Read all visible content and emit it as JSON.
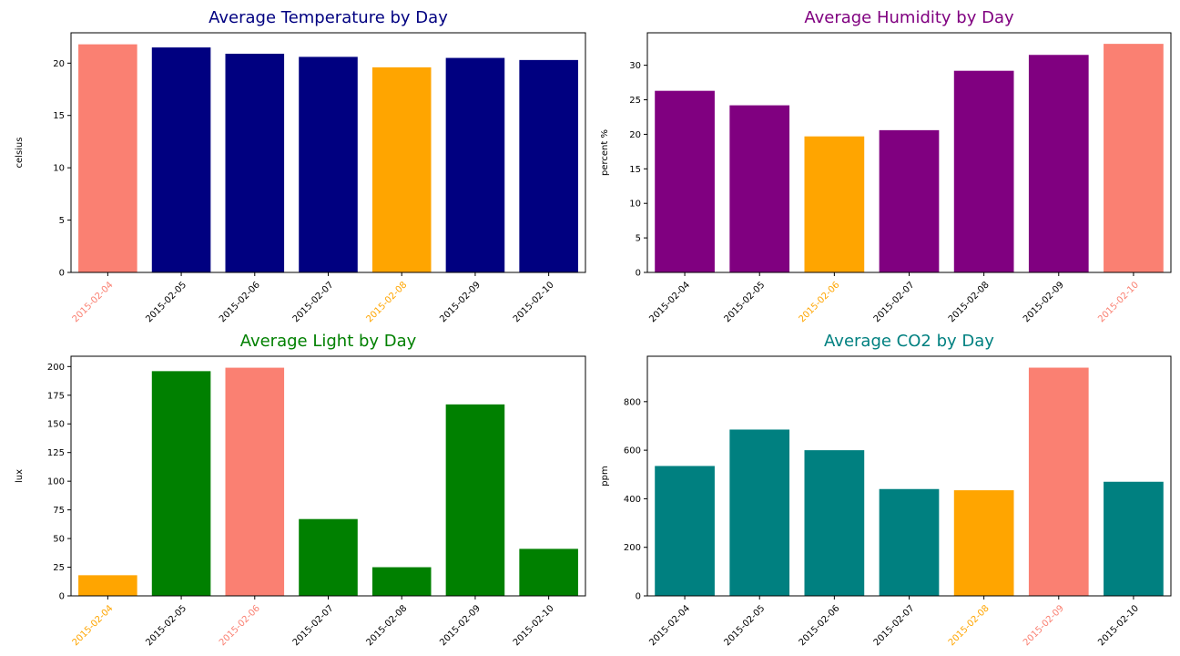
{
  "colors": {
    "highlight_max": "#fa8072",
    "highlight_min": "#ffa500",
    "axis": "#000000",
    "background": "#ffffff"
  },
  "chart_data": [
    {
      "id": "temperature",
      "type": "bar",
      "title": "Average Temperature by Day",
      "title_color": "#000080",
      "bar_color": "#000080",
      "xlabel": "",
      "ylabel": "celsius",
      "categories": [
        "2015-02-04",
        "2015-02-05",
        "2015-02-06",
        "2015-02-07",
        "2015-02-08",
        "2015-02-09",
        "2015-02-10"
      ],
      "values": [
        21.8,
        21.5,
        20.9,
        20.6,
        19.6,
        20.5,
        20.3
      ],
      "ylim": [
        0,
        22.9
      ],
      "yticks": [
        0,
        5,
        10,
        15,
        20
      ],
      "max_index": 0,
      "min_index": 4,
      "grid": false
    },
    {
      "id": "humidity",
      "type": "bar",
      "title": "Average Humidity by Day",
      "title_color": "#800080",
      "bar_color": "#800080",
      "xlabel": "",
      "ylabel": "percent %",
      "categories": [
        "2015-02-04",
        "2015-02-05",
        "2015-02-06",
        "2015-02-07",
        "2015-02-08",
        "2015-02-09",
        "2015-02-10"
      ],
      "values": [
        26.3,
        24.2,
        19.7,
        20.6,
        29.2,
        31.5,
        33.1
      ],
      "ylim": [
        0,
        34.7
      ],
      "yticks": [
        0,
        5,
        10,
        15,
        20,
        25,
        30
      ],
      "max_index": 6,
      "min_index": 2,
      "grid": false
    },
    {
      "id": "light",
      "type": "bar",
      "title": "Average Light by Day",
      "title_color": "#008000",
      "bar_color": "#008000",
      "xlabel": "",
      "ylabel": "lux",
      "categories": [
        "2015-02-04",
        "2015-02-05",
        "2015-02-06",
        "2015-02-07",
        "2015-02-08",
        "2015-02-09",
        "2015-02-10"
      ],
      "values": [
        18,
        196,
        199,
        67,
        25,
        167,
        41
      ],
      "ylim": [
        0,
        209
      ],
      "yticks": [
        0,
        25,
        50,
        75,
        100,
        125,
        150,
        175,
        200
      ],
      "max_index": 2,
      "min_index": 0,
      "grid": false
    },
    {
      "id": "co2",
      "type": "bar",
      "title": "Average CO2 by Day",
      "title_color": "#008080",
      "bar_color": "#008080",
      "xlabel": "",
      "ylabel": "ppm",
      "categories": [
        "2015-02-04",
        "2015-02-05",
        "2015-02-06",
        "2015-02-07",
        "2015-02-08",
        "2015-02-09",
        "2015-02-10"
      ],
      "values": [
        535,
        685,
        600,
        440,
        435,
        940,
        470
      ],
      "ylim": [
        0,
        987
      ],
      "yticks": [
        0,
        200,
        400,
        600,
        800
      ],
      "max_index": 5,
      "min_index": 4,
      "grid": false
    }
  ]
}
